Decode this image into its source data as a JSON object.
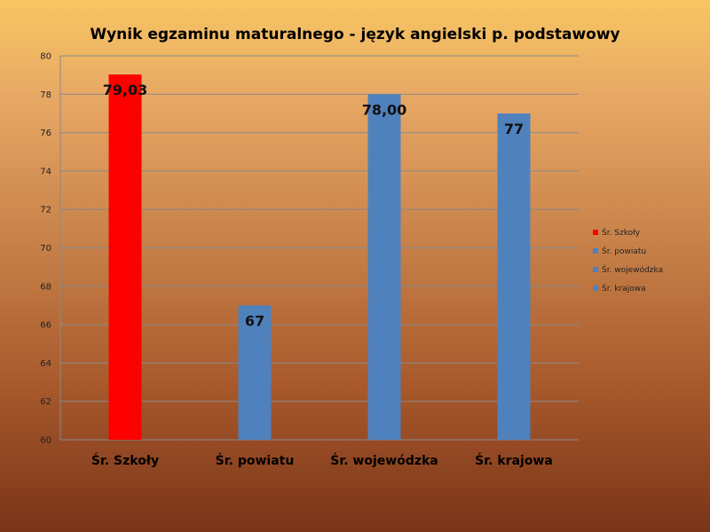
{
  "chart_data": {
    "type": "bar",
    "title": "Wynik egzaminu maturalnego - język angielski  p. podstawowy",
    "categories": [
      "Śr. Szkoły",
      "Śr. powiatu",
      "Śr. wojewódzka",
      "Śr. krajowa"
    ],
    "values": [
      79.03,
      67,
      78.0,
      77
    ],
    "data_labels": [
      "79,03",
      "67",
      "78,00",
      "77"
    ],
    "colors": [
      "#ff0000",
      "#4f81bd",
      "#4f81bd",
      "#4f81bd"
    ],
    "ylim": [
      60,
      80
    ],
    "yticks": [
      60,
      62,
      64,
      66,
      68,
      70,
      72,
      74,
      76,
      78,
      80
    ],
    "grid": true,
    "legend_position": "right",
    "legend": [
      {
        "name": "Śr. Szkoły",
        "color": "#ff0000"
      },
      {
        "name": "Śr. powiatu",
        "color": "#4f81bd"
      },
      {
        "name": "Śr. wojewódzka",
        "color": "#4f81bd"
      },
      {
        "name": "Śr. krajowa",
        "color": "#4f81bd"
      }
    ]
  }
}
